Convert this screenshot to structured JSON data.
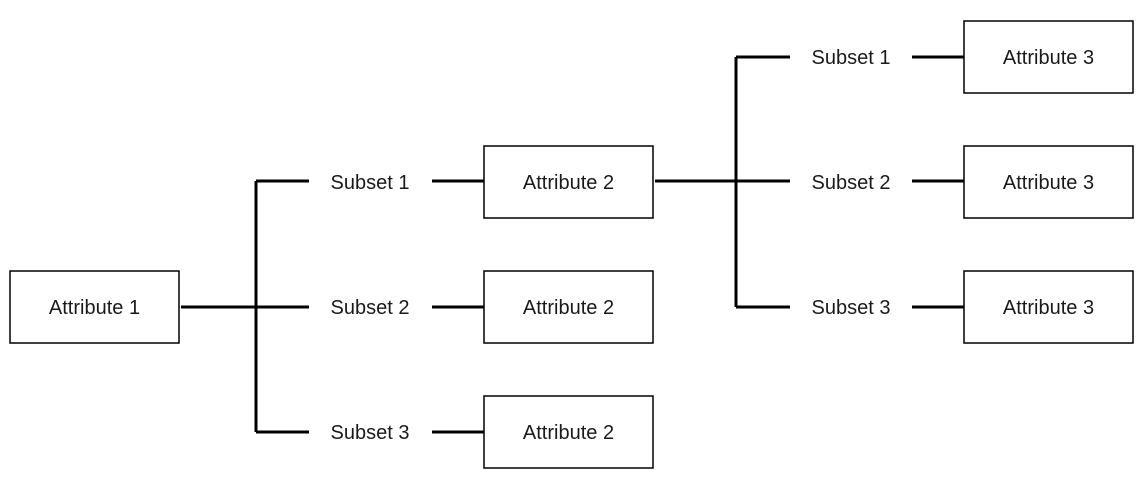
{
  "diagram": {
    "type": "tree",
    "root": "Attribute 1",
    "nodes": {
      "root": "Attribute 1",
      "level1_subsets": [
        "Subset 1",
        "Subset 2",
        "Subset 3"
      ],
      "level1_children": [
        "Attribute 2",
        "Attribute 2",
        "Attribute 2"
      ],
      "level2_subsets": [
        "Subset 1",
        "Subset 2",
        "Subset 3"
      ],
      "level2_children": [
        "Attribute 3",
        "Attribute 3",
        "Attribute 3"
      ]
    },
    "edges": [
      {
        "from": "Attribute 1",
        "via": "Subset 1",
        "to": "Attribute 2"
      },
      {
        "from": "Attribute 1",
        "via": "Subset 2",
        "to": "Attribute 2"
      },
      {
        "from": "Attribute 1",
        "via": "Subset 3",
        "to": "Attribute 2"
      },
      {
        "from": "Attribute 2",
        "via": "Subset 1",
        "to": "Attribute 3"
      },
      {
        "from": "Attribute 2",
        "via": "Subset 2",
        "to": "Attribute 3"
      },
      {
        "from": "Attribute 2",
        "via": "Subset 3",
        "to": "Attribute 3"
      }
    ]
  }
}
